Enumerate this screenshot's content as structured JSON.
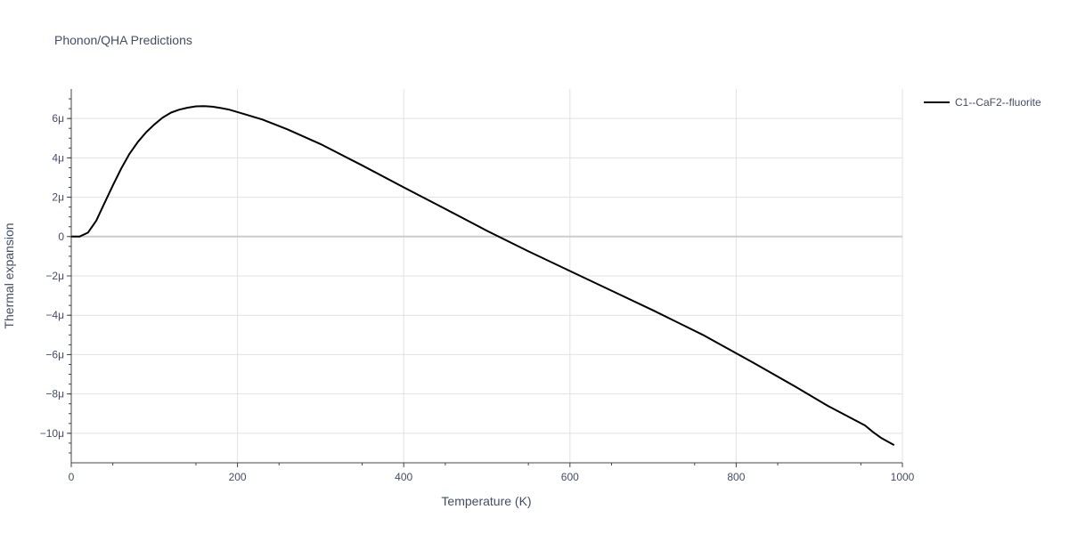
{
  "chart_data": {
    "type": "line",
    "title": "Phonon/QHA Predictions",
    "xlabel": "Temperature (K)",
    "ylabel": "Thermal expansion",
    "xlim": [
      0,
      1000
    ],
    "ylim": [
      -1.15e-05,
      7.5e-06
    ],
    "x_ticks": [
      0,
      200,
      400,
      600,
      800,
      1000
    ],
    "x_tick_labels": [
      "0",
      "200",
      "400",
      "600",
      "800",
      "1000"
    ],
    "y_ticks": [
      6e-06,
      4e-06,
      2e-06,
      0,
      -2e-06,
      -4e-06,
      -6e-06,
      -8e-06,
      -1e-05
    ],
    "y_tick_labels": [
      "6μ",
      "4μ",
      "2μ",
      "0",
      "−2μ",
      "−4μ",
      "−6μ",
      "−8μ",
      "−10μ"
    ],
    "grid": true,
    "legend_position": "top-right",
    "series": [
      {
        "name": "C1--CaF2--fluorite",
        "color": "#000000",
        "x": [
          0,
          10,
          20,
          30,
          40,
          50,
          60,
          70,
          80,
          90,
          100,
          110,
          120,
          130,
          140,
          150,
          160,
          170,
          180,
          190,
          200,
          230,
          260,
          300,
          350,
          400,
          450,
          500,
          550,
          600,
          650,
          700,
          760,
          820,
          870,
          910,
          955,
          965,
          975,
          990
        ],
        "y": [
          0,
          0,
          2e-07,
          8e-07,
          1.7e-06,
          2.6e-06,
          3.45e-06,
          4.2e-06,
          4.8e-06,
          5.3e-06,
          5.7e-06,
          6.05e-06,
          6.3e-06,
          6.45e-06,
          6.55e-06,
          6.62e-06,
          6.63e-06,
          6.6e-06,
          6.53e-06,
          6.45e-06,
          6.33e-06,
          5.95e-06,
          5.45e-06,
          4.7e-06,
          3.62e-06,
          2.5e-06,
          1.4e-06,
          3e-07,
          -7.5e-07,
          -1.75e-06,
          -2.75e-06,
          -3.75e-06,
          -5e-06,
          -6.4e-06,
          -7.6e-06,
          -8.6e-06,
          -9.6e-06,
          -9.95e-06,
          -1.025e-05,
          -1.06e-05
        ]
      }
    ]
  }
}
